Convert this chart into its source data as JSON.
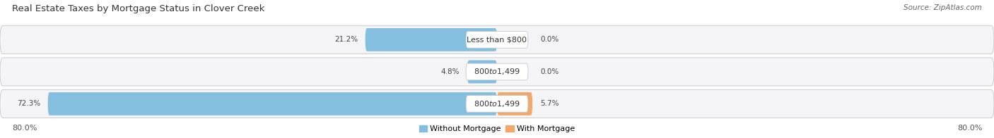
{
  "title": "Real Estate Taxes by Mortgage Status in Clover Creek",
  "source": "Source: ZipAtlas.com",
  "rows": [
    {
      "label": "Less than $800",
      "without_mortgage": 21.2,
      "with_mortgage": 0.0
    },
    {
      "label": "$800 to $1,499",
      "without_mortgage": 4.8,
      "with_mortgage": 0.0
    },
    {
      "label": "$800 to $1,499",
      "without_mortgage": 72.3,
      "with_mortgage": 5.7
    }
  ],
  "xlim": 80.0,
  "color_without": "#85BFDF",
  "color_with": "#F0A96A",
  "bar_bg_color": "#E8E8EE",
  "bar_bg_edge": "#D0D0DA",
  "row_bg_color": "#F5F5F7",
  "legend_labels": [
    "Without Mortgage",
    "With Mortgage"
  ],
  "title_fontsize": 9.5,
  "source_fontsize": 7.5,
  "label_fontsize": 8.0,
  "axis_fontsize": 8.0,
  "value_fontsize": 7.5
}
